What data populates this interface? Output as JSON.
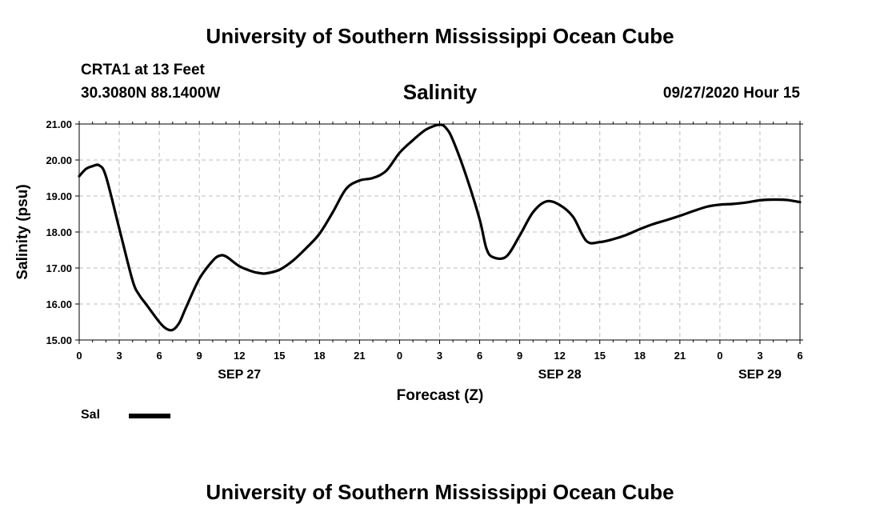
{
  "header": {
    "title": "University of Southern Mississippi Ocean Cube",
    "station": "CRTA1 at 13 Feet",
    "coords": "30.3080N 88.1400W",
    "timestamp": "09/27/2020 Hour 15"
  },
  "footer": {
    "title": "University of Southern Mississippi Ocean Cube"
  },
  "legend": {
    "label": "Sal"
  },
  "chart_data": {
    "type": "line",
    "title": "Salinity",
    "xlabel": "Forecast (Z)",
    "ylabel": "Salinity (psu)",
    "xlim": [
      0,
      54
    ],
    "ylim": [
      15,
      21
    ],
    "grid": true,
    "legend_position": "bottom-left",
    "line_color": "#000000",
    "x_ticks": [
      {
        "x": 0,
        "label": "0"
      },
      {
        "x": 3,
        "label": "3"
      },
      {
        "x": 6,
        "label": "6"
      },
      {
        "x": 9,
        "label": "9"
      },
      {
        "x": 12,
        "label": "12"
      },
      {
        "x": 15,
        "label": "15"
      },
      {
        "x": 18,
        "label": "18"
      },
      {
        "x": 21,
        "label": "21"
      },
      {
        "x": 24,
        "label": "0"
      },
      {
        "x": 27,
        "label": "3"
      },
      {
        "x": 30,
        "label": "6"
      },
      {
        "x": 33,
        "label": "9"
      },
      {
        "x": 36,
        "label": "12"
      },
      {
        "x": 39,
        "label": "15"
      },
      {
        "x": 42,
        "label": "18"
      },
      {
        "x": 45,
        "label": "21"
      },
      {
        "x": 48,
        "label": "0"
      },
      {
        "x": 51,
        "label": "3"
      },
      {
        "x": 54,
        "label": "6"
      }
    ],
    "day_labels": [
      {
        "x": 12,
        "label": "SEP 27"
      },
      {
        "x": 36,
        "label": "SEP 28"
      },
      {
        "x": 51,
        "label": "SEP 29"
      }
    ],
    "y_ticks": [
      "15.00",
      "16.00",
      "17.00",
      "18.00",
      "19.00",
      "20.00",
      "21.00"
    ],
    "series": [
      {
        "name": "Sal",
        "x": [
          0,
          0.5,
          1,
          1.5,
          2,
          3,
          4,
          4.5,
          5,
          6,
          6.5,
          7,
          7.5,
          8,
          9,
          10,
          10.5,
          11,
          12,
          13,
          13.5,
          14,
          15,
          16,
          17,
          18,
          19,
          20,
          21,
          22,
          23,
          24,
          25,
          26,
          27,
          27.5,
          28,
          29,
          30,
          30.5,
          31,
          32,
          33,
          34,
          35,
          36,
          37,
          38,
          39,
          40,
          41,
          42,
          43,
          44,
          45,
          46,
          47,
          48,
          49,
          50,
          51,
          52,
          53,
          54
        ],
        "y": [
          19.55,
          19.75,
          19.83,
          19.85,
          19.55,
          18.1,
          16.65,
          16.25,
          16.0,
          15.5,
          15.32,
          15.28,
          15.48,
          15.9,
          16.7,
          17.2,
          17.34,
          17.32,
          17.05,
          16.9,
          16.86,
          16.85,
          16.95,
          17.2,
          17.55,
          17.95,
          18.55,
          19.2,
          19.43,
          19.5,
          19.7,
          20.2,
          20.55,
          20.85,
          20.98,
          20.88,
          20.55,
          19.55,
          18.35,
          17.55,
          17.3,
          17.32,
          17.9,
          18.55,
          18.85,
          18.75,
          18.42,
          17.75,
          17.72,
          17.8,
          17.92,
          18.08,
          18.22,
          18.33,
          18.45,
          18.58,
          18.7,
          18.76,
          18.78,
          18.82,
          18.88,
          18.9,
          18.89,
          18.83
        ]
      }
    ]
  }
}
